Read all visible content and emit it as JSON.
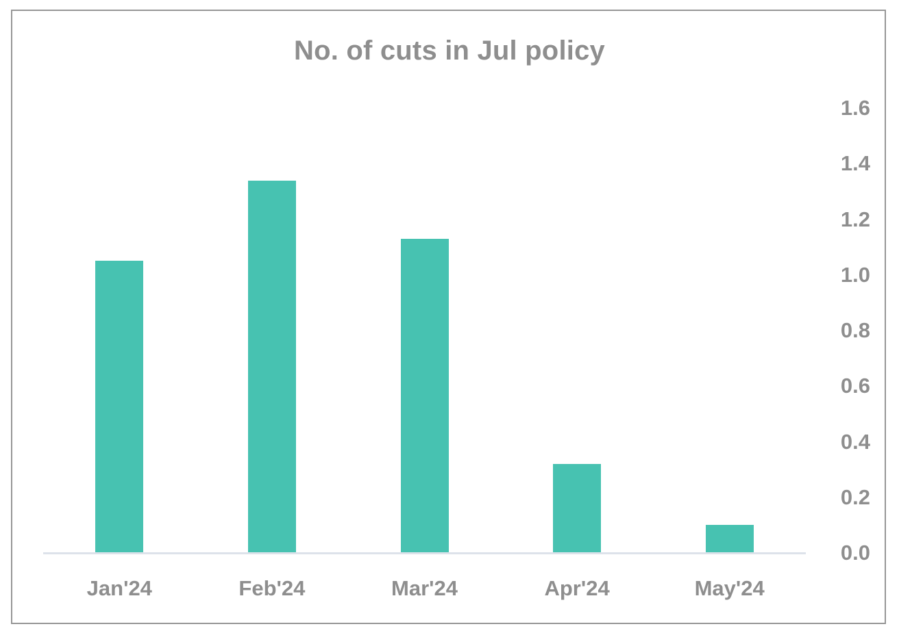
{
  "chart_data": {
    "type": "bar",
    "title": "No. of cuts in Jul policy",
    "xlabel": "",
    "ylabel": "",
    "categories": [
      "Jan'24",
      "Feb'24",
      "Mar'24",
      "Apr'24",
      "May'24"
    ],
    "values": [
      1.05,
      1.34,
      1.13,
      0.32,
      0.1
    ],
    "ylim": [
      0.0,
      1.6
    ],
    "yticks": [
      "0.0",
      "0.2",
      "0.4",
      "0.6",
      "0.8",
      "1.0",
      "1.2",
      "1.4",
      "1.6"
    ],
    "y_axis_position": "right",
    "grid": false,
    "legend": null,
    "bar_color": "#47c2b1",
    "text_color": "#8e8e8e"
  }
}
